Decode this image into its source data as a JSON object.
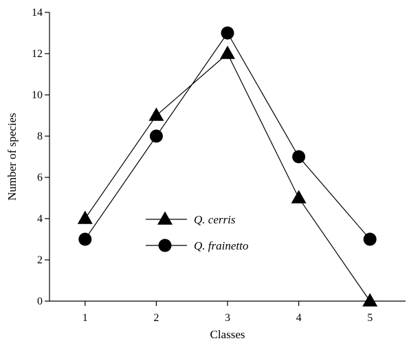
{
  "chart_data": {
    "type": "line",
    "title": "",
    "xlabel": "Classes",
    "ylabel": "Number of species",
    "x": [
      1,
      2,
      3,
      4,
      5
    ],
    "xlim": [
      0.5,
      5.5
    ],
    "ylim": [
      0,
      14
    ],
    "x_ticks": [
      "1",
      "2",
      "3",
      "4",
      "5"
    ],
    "y_ticks": [
      "0",
      "2",
      "4",
      "6",
      "8",
      "10",
      "12",
      "14"
    ],
    "grid": false,
    "legend_position": "center-left",
    "series": [
      {
        "name": "Q. cerris",
        "marker": "triangle",
        "color": "#000000",
        "values": [
          4,
          9,
          12,
          5,
          0
        ]
      },
      {
        "name": "Q. frainetto",
        "marker": "circle",
        "color": "#000000",
        "values": [
          3,
          8,
          13,
          7,
          3
        ]
      }
    ]
  }
}
